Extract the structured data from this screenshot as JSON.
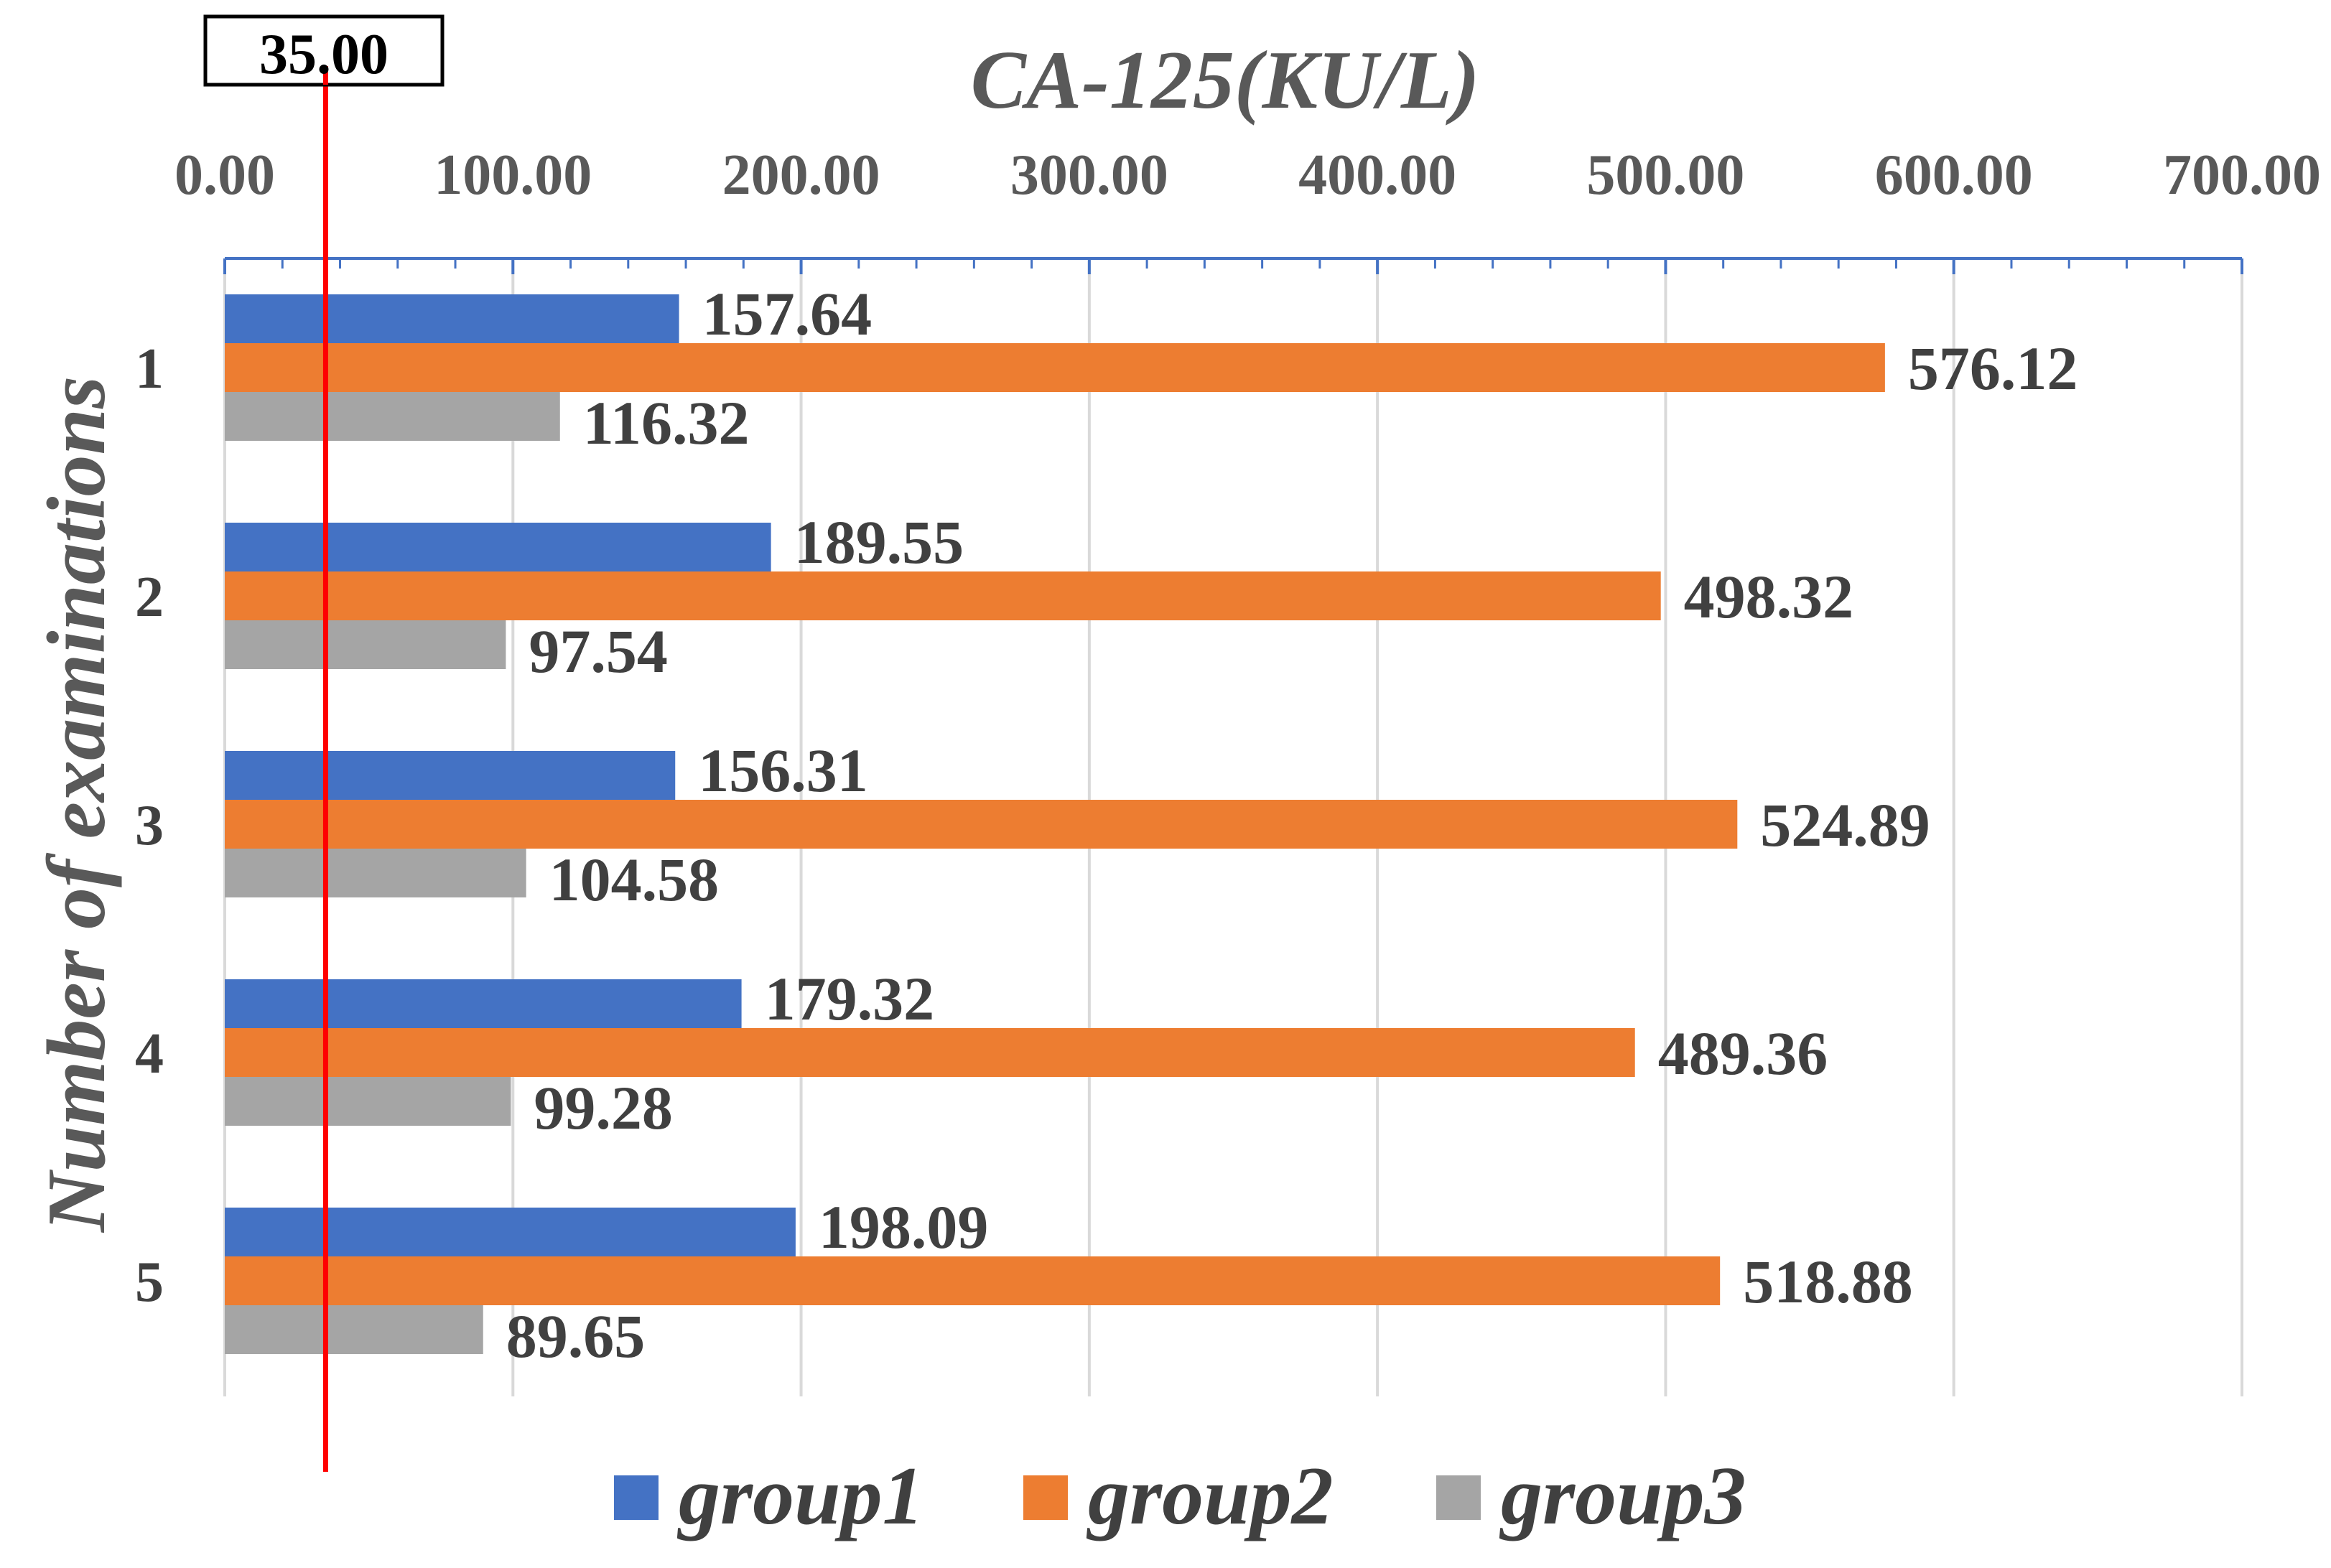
{
  "chart_data": {
    "type": "bar",
    "orientation": "horizontal",
    "title": "",
    "xlabel": "CA-125(KU/L)",
    "ylabel": "Number of examinations",
    "xlim": [
      0,
      700
    ],
    "x_ticks": [
      "0.00",
      "100.00",
      "200.00",
      "300.00",
      "400.00",
      "500.00",
      "600.00",
      "700.00"
    ],
    "categories": [
      "1",
      "2",
      "3",
      "4",
      "5"
    ],
    "series": [
      {
        "name": "group1",
        "color": "#4472C4",
        "values": [
          157.64,
          189.55,
          156.31,
          179.32,
          198.09
        ],
        "labels": [
          "157.64",
          "189.55",
          "156.31",
          "179.32",
          "198.09"
        ]
      },
      {
        "name": "group2",
        "color": "#ED7D31",
        "values": [
          576.12,
          498.32,
          524.89,
          489.36,
          518.88
        ],
        "labels": [
          "576.12",
          "498.32",
          "524.89",
          "489.36",
          "518.88"
        ]
      },
      {
        "name": "group3",
        "color": "#A5A5A5",
        "values": [
          116.32,
          97.54,
          104.58,
          99.28,
          89.65
        ],
        "labels": [
          "116.32",
          "97.54",
          "104.58",
          "99.28",
          "89.65"
        ]
      }
    ],
    "reference_line": {
      "value": 35.0,
      "label": "35.00",
      "color": "#FF0000"
    },
    "legend_position": "bottom",
    "grid": true,
    "axis_color": "#4472C4",
    "grid_color": "#D9D9D9"
  }
}
